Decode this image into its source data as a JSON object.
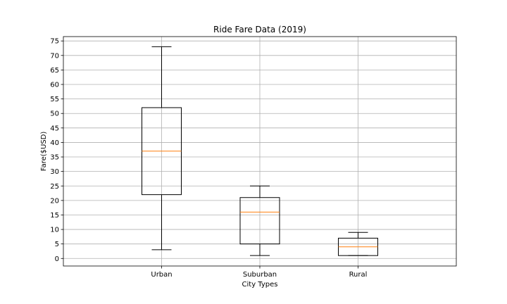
{
  "chart_data": {
    "type": "box",
    "title": "Ride Fare Data (2019)",
    "xlabel": "City Types",
    "ylabel": "Fare($USD)",
    "categories": [
      "Urban",
      "Suburban",
      "Rural"
    ],
    "boxes": [
      {
        "category": "Urban",
        "whisker_low": 3,
        "q1": 22,
        "median": 37,
        "q3": 52,
        "whisker_high": 73
      },
      {
        "category": "Suburban",
        "whisker_low": 1,
        "q1": 5,
        "median": 16,
        "q3": 21,
        "whisker_high": 25
      },
      {
        "category": "Rural",
        "whisker_low": 1,
        "q1": 1,
        "median": 4,
        "q3": 7,
        "whisker_high": 9
      }
    ],
    "yticks": [
      0,
      5,
      10,
      15,
      20,
      25,
      30,
      35,
      40,
      45,
      50,
      55,
      60,
      65,
      70,
      75
    ],
    "ylim": [
      -2.6,
      76.5
    ],
    "grid": true,
    "colors": {
      "box": "#000000",
      "median": "#ff7f0e",
      "grid": "#b0b0b0"
    }
  }
}
